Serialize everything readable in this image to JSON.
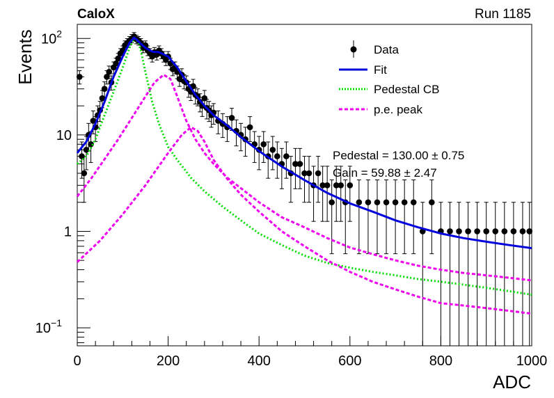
{
  "header": {
    "left": "CaloX",
    "right": "Run 1185"
  },
  "fit_text": {
    "line1": "Pedestal = 130.00 ± 0.75",
    "line2": "Gain = 59.88 ± 2.47"
  },
  "chart_data": {
    "type": "scatter",
    "xlabel": "ADC",
    "ylabel": "Events",
    "xlim": [
      0,
      1000
    ],
    "ylim": [
      0.065,
      140
    ],
    "yscale": "log",
    "x_ticks": [
      0,
      200,
      400,
      600,
      800,
      1000
    ],
    "y_ticks": [
      {
        "value": 0.1,
        "base": "10",
        "exp": "−1"
      },
      {
        "value": 1,
        "base": "1",
        "exp": ""
      },
      {
        "value": 10,
        "base": "10",
        "exp": ""
      },
      {
        "value": 100,
        "base": "10",
        "exp": "2"
      }
    ],
    "legend_position": "top-right",
    "legend": [
      {
        "label": "Data",
        "style": "marker",
        "color": "#000000"
      },
      {
        "label": "Fit",
        "style": "line",
        "color": "#0000dd"
      },
      {
        "label": "Pedestal CB",
        "style": "dotted",
        "color": "#00dd00"
      },
      {
        "label": "p.e. peak",
        "style": "dashed",
        "color": "#ee00ee"
      }
    ],
    "data_points": {
      "x": [
        5,
        10,
        15,
        20,
        25,
        30,
        35,
        40,
        45,
        50,
        55,
        60,
        65,
        70,
        75,
        80,
        85,
        90,
        95,
        100,
        105,
        110,
        115,
        120,
        125,
        130,
        135,
        140,
        145,
        150,
        155,
        160,
        165,
        170,
        175,
        180,
        185,
        190,
        195,
        200,
        205,
        210,
        215,
        220,
        225,
        230,
        235,
        240,
        245,
        250,
        255,
        260,
        265,
        270,
        275,
        280,
        285,
        290,
        295,
        300,
        310,
        320,
        330,
        340,
        350,
        360,
        370,
        380,
        390,
        400,
        410,
        420,
        430,
        440,
        450,
        460,
        470,
        480,
        490,
        500,
        510,
        520,
        530,
        540,
        550,
        560,
        570,
        580,
        590,
        600,
        620,
        640,
        660,
        680,
        700,
        720,
        740,
        760,
        780,
        800,
        820,
        840,
        860,
        880,
        900,
        920,
        940,
        960,
        980,
        995
      ],
      "y": [
        40,
        6,
        4,
        7,
        10,
        8,
        14,
        12,
        16,
        18,
        24,
        30,
        40,
        45,
        35,
        50,
        55,
        62,
        70,
        75,
        85,
        90,
        95,
        100,
        105,
        98,
        95,
        90,
        80,
        85,
        75,
        70,
        65,
        72,
        68,
        75,
        70,
        65,
        60,
        65,
        55,
        48,
        50,
        45,
        38,
        42,
        36,
        35,
        30,
        28,
        32,
        26,
        25,
        22,
        20,
        24,
        19,
        18,
        16,
        17,
        14,
        13,
        12,
        15,
        11,
        10,
        9,
        12,
        8,
        7,
        8,
        6,
        7,
        6,
        5,
        6,
        4,
        5,
        5,
        4,
        4,
        3,
        4,
        3,
        3,
        2,
        3,
        3,
        2,
        3,
        2,
        2,
        2,
        2,
        2,
        2,
        2,
        1,
        2,
        1,
        1,
        1,
        1,
        1,
        1,
        1,
        1,
        1,
        1,
        1
      ]
    },
    "series": [
      {
        "name": "Fit",
        "color": "#0000dd",
        "x": [
          0,
          20,
          40,
          60,
          80,
          100,
          115,
          125,
          130,
          140,
          150,
          165,
          180,
          200,
          220,
          240,
          260,
          280,
          300,
          330,
          360,
          400,
          450,
          500,
          550,
          600,
          650,
          700,
          750,
          800,
          850,
          900,
          950,
          1000
        ],
        "y": [
          6.5,
          8.5,
          13,
          22,
          40,
          65,
          90,
          102,
          98,
          88,
          80,
          73,
          72,
          65,
          50,
          36,
          26,
          20,
          16,
          12.5,
          9.5,
          6.8,
          4.7,
          3.4,
          2.5,
          1.95,
          1.6,
          1.3,
          1.1,
          0.95,
          0.85,
          0.78,
          0.72,
          0.67
        ]
      },
      {
        "name": "Pedestal CB",
        "color": "#00dd00",
        "x": [
          0,
          20,
          40,
          60,
          80,
          100,
          115,
          125,
          130,
          135,
          140,
          150,
          165,
          180,
          200,
          220,
          250,
          280,
          320,
          360,
          400,
          450,
          500,
          550,
          600,
          650,
          700,
          750,
          800,
          850,
          900,
          950,
          1000
        ],
        "y": [
          5,
          6,
          9,
          16,
          28,
          50,
          80,
          100,
          98,
          90,
          75,
          45,
          22,
          13,
          7.5,
          5.5,
          3.6,
          2.6,
          1.8,
          1.3,
          0.95,
          0.72,
          0.56,
          0.47,
          0.42,
          0.38,
          0.35,
          0.32,
          0.3,
          0.28,
          0.26,
          0.24,
          0.22
        ]
      },
      {
        "name": "p.e. peak",
        "color": "#ee00ee",
        "x": [
          0,
          30,
          60,
          90,
          120,
          150,
          170,
          190,
          205,
          220,
          240,
          260,
          280,
          300,
          330,
          360,
          400,
          450,
          500,
          550,
          600,
          650,
          700,
          750,
          800,
          850,
          900,
          950,
          1000
        ],
        "y": [
          2.3,
          3.5,
          5.6,
          9,
          15,
          25,
          35,
          42,
          38,
          25,
          14,
          9,
          6.5,
          5,
          3.6,
          2.8,
          2,
          1.4,
          1.1,
          0.85,
          0.68,
          0.58,
          0.5,
          0.44,
          0.4,
          0.37,
          0.35,
          0.33,
          0.31
        ]
      },
      {
        "name": "p.e. peak",
        "color": "#ee00ee",
        "x": [
          0,
          50,
          100,
          150,
          200,
          230,
          250,
          265,
          280,
          300,
          330,
          360,
          400,
          450,
          500,
          550,
          600,
          650,
          700,
          750,
          800,
          850,
          900,
          950,
          1000
        ],
        "y": [
          0.48,
          0.8,
          1.5,
          3,
          6.5,
          10,
          12,
          11,
          8.5,
          5.5,
          3.5,
          2.4,
          1.6,
          1,
          0.7,
          0.5,
          0.38,
          0.3,
          0.25,
          0.21,
          0.18,
          0.17,
          0.16,
          0.15,
          0.14
        ]
      }
    ]
  }
}
